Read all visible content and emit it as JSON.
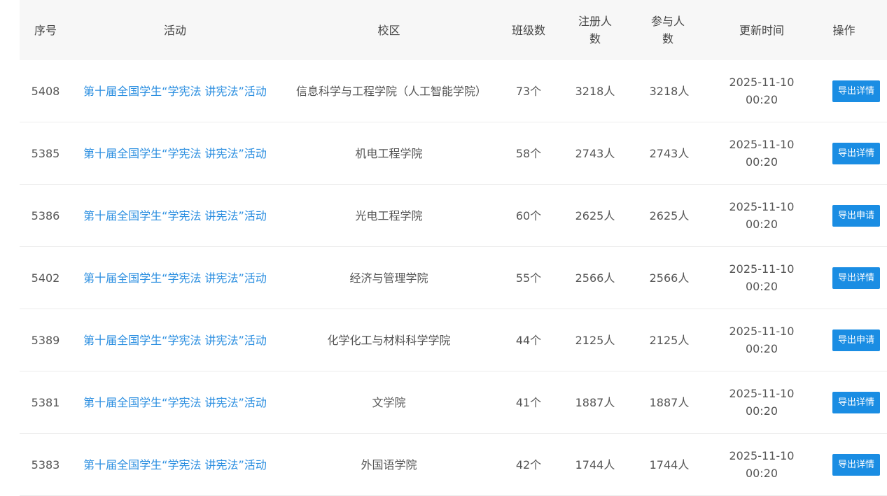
{
  "headers": [
    "序号",
    "活动",
    "校区",
    "班级数",
    "注册人数",
    "参与人数",
    "更新时间",
    "操作"
  ],
  "accent": "#1a8de3",
  "rows": [
    {
      "id": "5408",
      "activity": "第十届全国学生“学宪法 讲宪法”活动",
      "campus": "信息科学与工程学院（人工智能学院）",
      "classes": "73个",
      "registered": "3218人",
      "participants": "3218人",
      "updated": "2025-11-10 00:20",
      "action": "导出详情"
    },
    {
      "id": "5385",
      "activity": "第十届全国学生“学宪法 讲宪法”活动",
      "campus": "机电工程学院",
      "classes": "58个",
      "registered": "2743人",
      "participants": "2743人",
      "updated": "2025-11-10 00:20",
      "action": "导出详情"
    },
    {
      "id": "5386",
      "activity": "第十届全国学生“学宪法 讲宪法”活动",
      "campus": "光电工程学院",
      "classes": "60个",
      "registered": "2625人",
      "participants": "2625人",
      "updated": "2025-11-10 00:20",
      "action": "导出申请"
    },
    {
      "id": "5402",
      "activity": "第十届全国学生“学宪法 讲宪法”活动",
      "campus": "经济与管理学院",
      "classes": "55个",
      "registered": "2566人",
      "participants": "2566人",
      "updated": "2025-11-10 00:20",
      "action": "导出详情"
    },
    {
      "id": "5389",
      "activity": "第十届全国学生“学宪法 讲宪法”活动",
      "campus": "化学化工与材料科学学院",
      "classes": "44个",
      "registered": "2125人",
      "participants": "2125人",
      "updated": "2025-11-10 00:20",
      "action": "导出申请"
    },
    {
      "id": "5381",
      "activity": "第十届全国学生“学宪法 讲宪法”活动",
      "campus": "文学院",
      "classes": "41个",
      "registered": "1887人",
      "participants": "1887人",
      "updated": "2025-11-10 00:20",
      "action": "导出详情"
    },
    {
      "id": "5383",
      "activity": "第十届全国学生“学宪法 讲宪法”活动",
      "campus": "外国语学院",
      "classes": "42个",
      "registered": "1744人",
      "participants": "1744人",
      "updated": "2025-11-10 00:20",
      "action": "导出详情"
    }
  ]
}
